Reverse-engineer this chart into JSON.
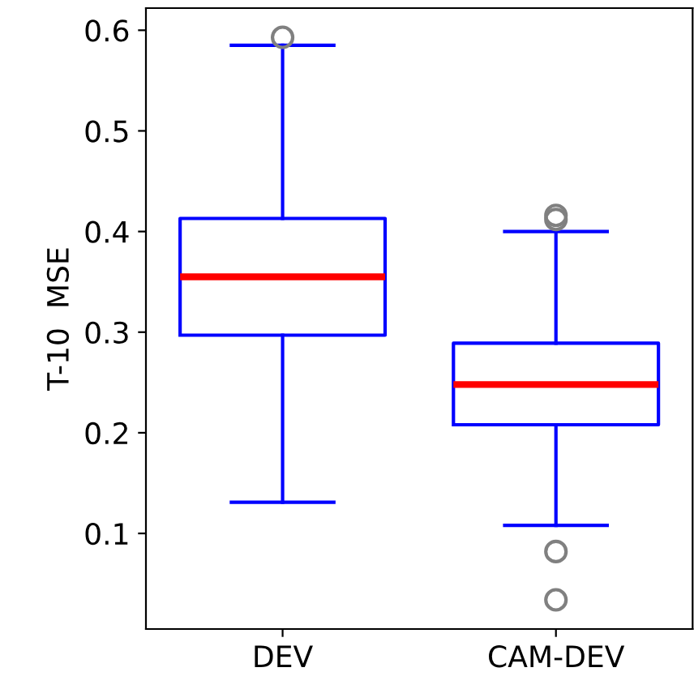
{
  "chart_data": {
    "type": "box",
    "ylabel": "T-10  MSE",
    "categories": [
      "DEV",
      "CAM-DEV"
    ],
    "boxes": [
      {
        "low": 0.131,
        "q1": 0.297,
        "median": 0.355,
        "q3": 0.413,
        "high": 0.585,
        "outliers": [
          0.593
        ]
      },
      {
        "low": 0.108,
        "q1": 0.208,
        "median": 0.248,
        "q3": 0.289,
        "high": 0.4,
        "outliers": [
          0.416,
          0.412,
          0.082,
          0.034
        ]
      }
    ],
    "color": "#0000ff",
    "ylim": [
      0.005,
      0.622
    ],
    "yticks": [
      0.1,
      0.2,
      0.3,
      0.4,
      0.5,
      0.6
    ],
    "grid": false
  }
}
